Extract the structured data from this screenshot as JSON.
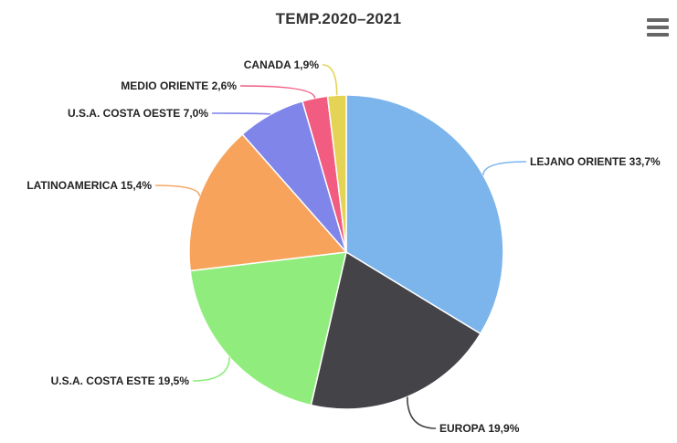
{
  "chart": {
    "title": "TEMP.2020–2021",
    "context_menu_icon": "hamburger-menu-icon",
    "background_color": "#ffffff",
    "title_color": "#333333",
    "label_color": "#222222",
    "context_icon_color": "#666666"
  },
  "chart_data": {
    "type": "pie",
    "title": "TEMP.2020–2021",
    "unit": "%",
    "decimal_separator": ",",
    "start_angle_deg": 0,
    "direction": "clockwise",
    "labels_position": "outside-with-connectors",
    "legend": false,
    "slices": [
      {
        "label": "LEJANO ORIENTE",
        "value": 33.7,
        "display": "LEJANO ORIENTE 33,7%",
        "color": "#7cb5ec"
      },
      {
        "label": "EUROPA",
        "value": 19.9,
        "display": "EUROPA 19,9%",
        "color": "#434348"
      },
      {
        "label": "U.S.A. COSTA ESTE",
        "value": 19.5,
        "display": "U.S.A. COSTA ESTE 19,5%",
        "color": "#90ed7d"
      },
      {
        "label": "LATINOAMERICA",
        "value": 15.4,
        "display": "LATINOAMERICA 15,4%",
        "color": "#f7a35c"
      },
      {
        "label": "U.S.A. COSTA OESTE",
        "value": 7.0,
        "display": "U.S.A. COSTA OESTE 7,0%",
        "color": "#8085e9"
      },
      {
        "label": "MEDIO ORIENTE",
        "value": 2.6,
        "display": "MEDIO ORIENTE 2,6%",
        "color": "#f15c80"
      },
      {
        "label": "CANADA",
        "value": 1.9,
        "display": "CANADA 1,9%",
        "color": "#e4d354"
      }
    ]
  }
}
